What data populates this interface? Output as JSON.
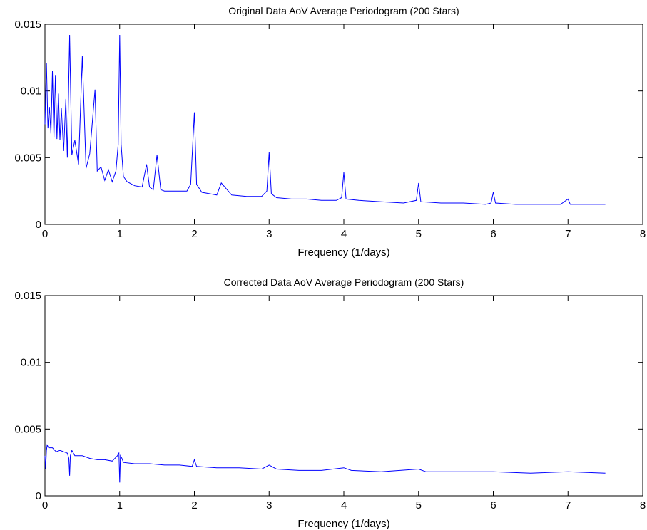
{
  "chart_data": [
    {
      "type": "line",
      "title": "Original Data AoV Average Periodogram (200 Stars)",
      "xlabel": "Frequency (1/days)",
      "ylabel": "",
      "xlim": [
        0,
        8
      ],
      "ylim": [
        0,
        0.015
      ],
      "xticks": [
        "0",
        "1",
        "2",
        "3",
        "4",
        "5",
        "6",
        "7",
        "8"
      ],
      "yticks": [
        "0",
        "0.005",
        "0.01",
        "0.015"
      ],
      "grid": false,
      "series": [
        {
          "color": "#0000ff",
          "x": [
            0,
            0.02,
            0.04,
            0.06,
            0.08,
            0.1,
            0.12,
            0.14,
            0.16,
            0.18,
            0.2,
            0.22,
            0.25,
            0.28,
            0.3,
            0.33,
            0.36,
            0.4,
            0.45,
            0.5,
            0.55,
            0.6,
            0.67,
            0.7,
            0.75,
            0.8,
            0.85,
            0.9,
            0.95,
            0.98,
            1.0,
            1.02,
            1.05,
            1.1,
            1.2,
            1.3,
            1.36,
            1.4,
            1.45,
            1.5,
            1.55,
            1.6,
            1.7,
            1.8,
            1.9,
            1.95,
            2.0,
            2.03,
            2.1,
            2.2,
            2.3,
            2.36,
            2.5,
            2.7,
            2.9,
            2.97,
            3.0,
            3.03,
            3.1,
            3.3,
            3.5,
            3.7,
            3.9,
            3.97,
            4.0,
            4.03,
            4.2,
            4.5,
            4.8,
            4.97,
            5.0,
            5.03,
            5.3,
            5.6,
            5.9,
            5.97,
            6.0,
            6.03,
            6.3,
            6.6,
            6.9,
            7.0,
            7.03,
            7.3,
            7.5
          ],
          "y": [
            0.0075,
            0.0121,
            0.0072,
            0.0088,
            0.0068,
            0.0115,
            0.0065,
            0.0112,
            0.0064,
            0.0098,
            0.0063,
            0.0087,
            0.0055,
            0.0094,
            0.005,
            0.0142,
            0.0052,
            0.0063,
            0.0045,
            0.0126,
            0.0042,
            0.0053,
            0.0101,
            0.004,
            0.0043,
            0.0033,
            0.0041,
            0.0032,
            0.004,
            0.006,
            0.0142,
            0.006,
            0.0036,
            0.0032,
            0.0029,
            0.0028,
            0.0045,
            0.0028,
            0.0026,
            0.0052,
            0.0026,
            0.0025,
            0.0025,
            0.0025,
            0.0025,
            0.003,
            0.0084,
            0.003,
            0.0024,
            0.0023,
            0.0022,
            0.0031,
            0.0022,
            0.0021,
            0.0021,
            0.0025,
            0.0054,
            0.0023,
            0.002,
            0.0019,
            0.0019,
            0.0018,
            0.0018,
            0.002,
            0.0039,
            0.0019,
            0.0018,
            0.0017,
            0.0016,
            0.0018,
            0.0031,
            0.0017,
            0.0016,
            0.0016,
            0.0015,
            0.0016,
            0.0024,
            0.0016,
            0.0015,
            0.0015,
            0.0015,
            0.0019,
            0.0015,
            0.0015,
            0.0015
          ]
        }
      ]
    },
    {
      "type": "line",
      "title": "Corrected Data AoV Average Periodogram (200 Stars)",
      "xlabel": "Frequency (1/days)",
      "ylabel": "",
      "xlim": [
        0,
        8
      ],
      "ylim": [
        0,
        0.015
      ],
      "xticks": [
        "0",
        "1",
        "2",
        "3",
        "4",
        "5",
        "6",
        "7",
        "8"
      ],
      "yticks": [
        "0",
        "0.005",
        "0.01",
        "0.015"
      ],
      "grid": false,
      "series": [
        {
          "color": "#0000ff",
          "x": [
            0,
            0.01,
            0.02,
            0.03,
            0.05,
            0.1,
            0.15,
            0.2,
            0.3,
            0.32,
            0.33,
            0.34,
            0.36,
            0.4,
            0.5,
            0.6,
            0.7,
            0.8,
            0.9,
            0.97,
            0.99,
            1.0,
            1.01,
            1.03,
            1.05,
            1.2,
            1.4,
            1.6,
            1.8,
            1.97,
            2.0,
            2.03,
            2.3,
            2.6,
            2.9,
            3.0,
            3.1,
            3.4,
            3.7,
            4.0,
            4.1,
            4.5,
            5.0,
            5.1,
            5.5,
            6.0,
            6.5,
            7.0,
            7.5
          ],
          "y": [
            0.003,
            0.002,
            0.0034,
            0.0038,
            0.0036,
            0.0036,
            0.0033,
            0.0034,
            0.0032,
            0.0028,
            0.0015,
            0.003,
            0.0034,
            0.003,
            0.003,
            0.0028,
            0.0027,
            0.0027,
            0.0026,
            0.003,
            0.0032,
            0.001,
            0.003,
            0.0028,
            0.0025,
            0.0024,
            0.0024,
            0.0023,
            0.0023,
            0.0022,
            0.0027,
            0.0022,
            0.0021,
            0.0021,
            0.002,
            0.0023,
            0.002,
            0.0019,
            0.0019,
            0.0021,
            0.0019,
            0.0018,
            0.002,
            0.0018,
            0.0018,
            0.0018,
            0.0017,
            0.0018,
            0.0017
          ]
        }
      ]
    }
  ]
}
